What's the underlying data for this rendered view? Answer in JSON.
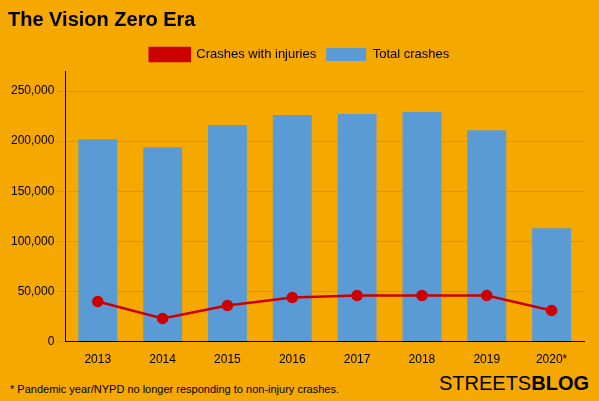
{
  "chart_data": {
    "type": "bar",
    "title": "The Vision Zero Era",
    "categories": [
      "2013",
      "2014",
      "2015",
      "2016",
      "2017",
      "2018",
      "2019",
      "2020*"
    ],
    "series": [
      {
        "name": "Crashes with injuries",
        "type": "line",
        "color": "#CC0000",
        "marker": "circle",
        "values": [
          40000,
          23000,
          36000,
          44000,
          46000,
          46000,
          46000,
          31000
        ]
      },
      {
        "name": "Total crashes",
        "type": "bar",
        "color": "#5B9BD5",
        "values": [
          202000,
          194000,
          216000,
          226000,
          227000,
          229000,
          211000,
          113000
        ]
      }
    ],
    "ylim": [
      0,
      270000
    ],
    "yticks": [
      0,
      {
        "value": 50000,
        "label": "50,000"
      },
      {
        "value": 100000,
        "label": "100,000"
      },
      {
        "value": 150000,
        "label": "150,000"
      },
      {
        "value": 200000,
        "label": "200,000"
      },
      {
        "value": 250000,
        "label": "250,000"
      }
    ],
    "grid": true,
    "legend": "top",
    "annotations": [
      "* Pandemic year/NYPD no longer responding to non-injury crashes.",
      "STREETS",
      "BLOG"
    ]
  }
}
